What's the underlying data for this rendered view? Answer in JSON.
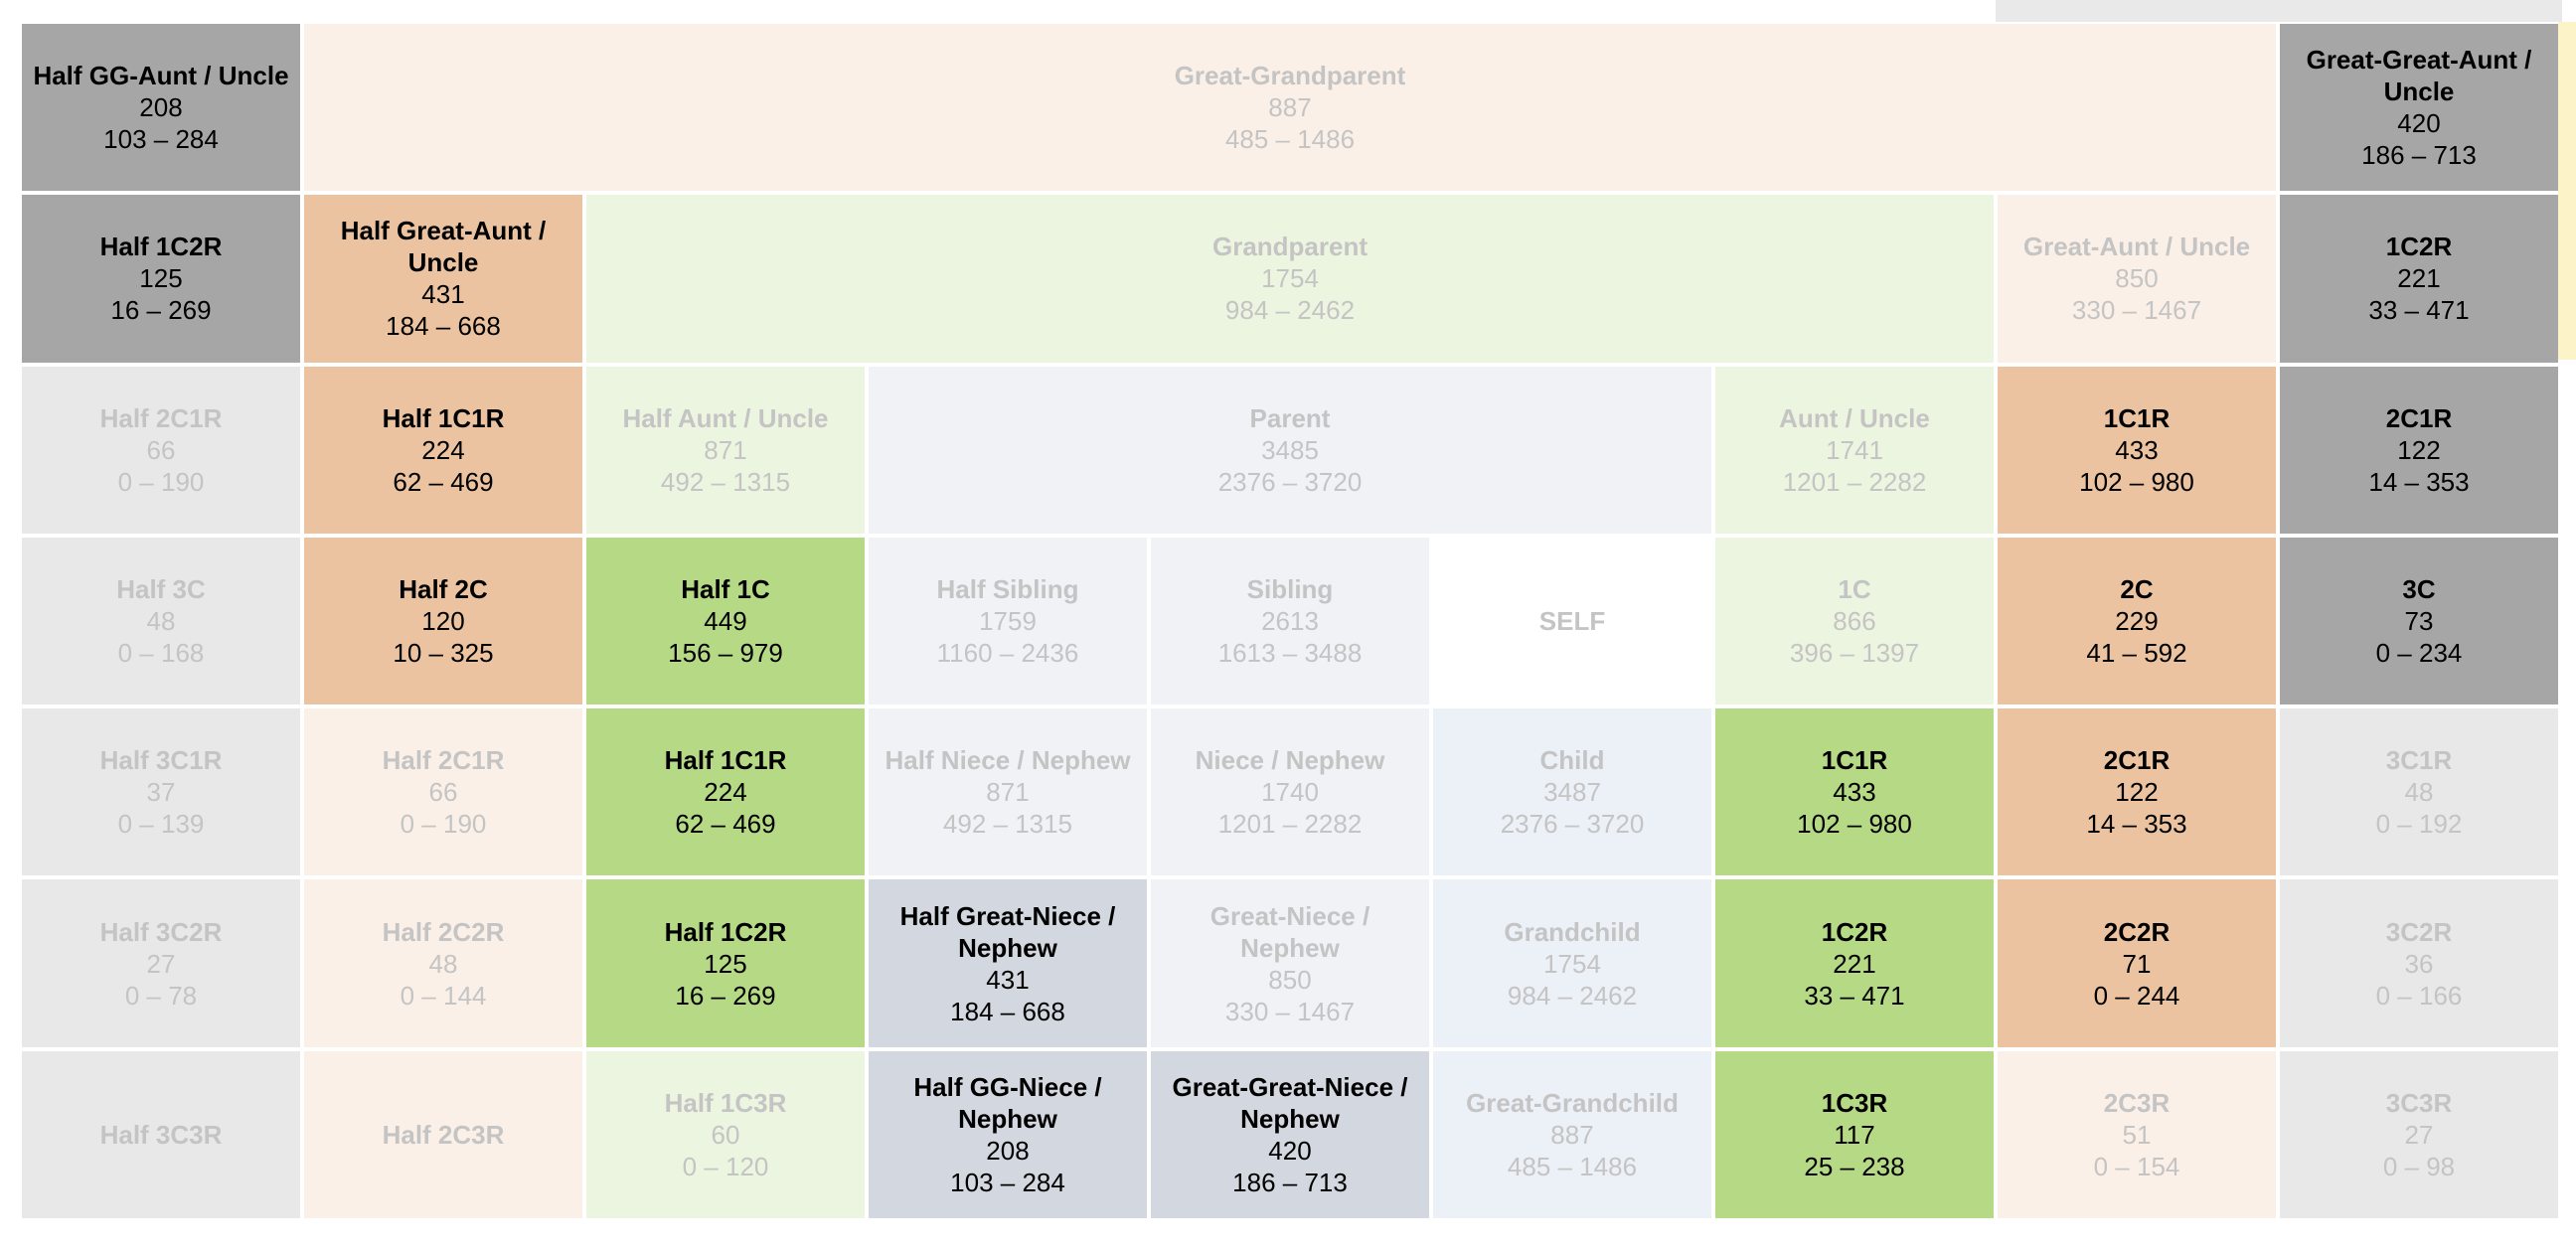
{
  "colors": {
    "dark_gray": "#a6a6a6",
    "light_gray": "#e8e8e8",
    "peach_dark": "#ecc3a1",
    "peach_light": "#fbf0e7",
    "green_dark": "#b5d985",
    "green_light": "#ecf5e0",
    "slate_dark": "#d2d7e0",
    "slate_light": "#f1f2f6",
    "blue_light": "#ecf0f7",
    "white": "#ffffff",
    "text_active": "#000000",
    "text_faded": "#c4c4c4"
  },
  "cells": [
    {
      "title": "Half GG-Aunt / Uncle",
      "count": "208",
      "range": "103 – 284",
      "active": true,
      "bg": "dark_gray"
    },
    {
      "title": "Great-Grandparent",
      "count": "887",
      "range": "485 – 1486",
      "active": false,
      "bg": "peach_light"
    },
    {
      "title": "Great-Great-Aunt / Uncle",
      "count": "420",
      "range": "186 – 713",
      "active": true,
      "bg": "dark_gray"
    },
    {
      "title": "Half 1C2R",
      "count": "125",
      "range": "16 – 269",
      "active": true,
      "bg": "dark_gray"
    },
    {
      "title": "Half Great-Aunt / Uncle",
      "count": "431",
      "range": "184 – 668",
      "active": true,
      "bg": "peach_dark"
    },
    {
      "title": "Grandparent",
      "count": "1754",
      "range": "984 – 2462",
      "active": false,
      "bg": "green_light"
    },
    {
      "title": "Great-Aunt / Uncle",
      "count": "850",
      "range": "330 – 1467",
      "active": false,
      "bg": "peach_light"
    },
    {
      "title": "1C2R",
      "count": "221",
      "range": "33 – 471",
      "active": true,
      "bg": "dark_gray"
    },
    {
      "title": "Half 2C1R",
      "count": "66",
      "range": "0 – 190",
      "active": false,
      "bg": "light_gray"
    },
    {
      "title": "Half 1C1R",
      "count": "224",
      "range": "62 – 469",
      "active": true,
      "bg": "peach_dark"
    },
    {
      "title": "Half Aunt / Uncle",
      "count": "871",
      "range": "492 – 1315",
      "active": false,
      "bg": "green_light"
    },
    {
      "title": "Parent",
      "count": "3485",
      "range": "2376 – 3720",
      "active": false,
      "bg": "slate_light"
    },
    {
      "title": "Aunt / Uncle",
      "count": "1741",
      "range": "1201 – 2282",
      "active": false,
      "bg": "green_light"
    },
    {
      "title": "1C1R",
      "count": "433",
      "range": "102 – 980",
      "active": true,
      "bg": "peach_dark"
    },
    {
      "title": "2C1R",
      "count": "122",
      "range": "14 – 353",
      "active": true,
      "bg": "dark_gray"
    },
    {
      "title": "Half 3C",
      "count": "48",
      "range": "0 – 168",
      "active": false,
      "bg": "light_gray"
    },
    {
      "title": "Half 2C",
      "count": "120",
      "range": "10 – 325",
      "active": true,
      "bg": "peach_dark"
    },
    {
      "title": "Half 1C",
      "count": "449",
      "range": "156 – 979",
      "active": true,
      "bg": "green_dark"
    },
    {
      "title": "Half Sibling",
      "count": "1759",
      "range": "1160 – 2436",
      "active": false,
      "bg": "slate_light"
    },
    {
      "title": "Sibling",
      "count": "2613",
      "range": "1613 – 3488",
      "active": false,
      "bg": "slate_light"
    },
    {
      "title": "SELF",
      "count": "",
      "range": "",
      "active": false,
      "bg": "white"
    },
    {
      "title": "1C",
      "count": "866",
      "range": "396 – 1397",
      "active": false,
      "bg": "green_light"
    },
    {
      "title": "2C",
      "count": "229",
      "range": "41 – 592",
      "active": true,
      "bg": "peach_dark"
    },
    {
      "title": "3C",
      "count": "73",
      "range": "0 – 234",
      "active": true,
      "bg": "dark_gray"
    },
    {
      "title": "Half 3C1R",
      "count": "37",
      "range": "0 – 139",
      "active": false,
      "bg": "light_gray"
    },
    {
      "title": "Half 2C1R",
      "count": "66",
      "range": "0 – 190",
      "active": false,
      "bg": "peach_light"
    },
    {
      "title": "Half 1C1R",
      "count": "224",
      "range": "62 – 469",
      "active": true,
      "bg": "green_dark"
    },
    {
      "title": "Half Niece / Nephew",
      "count": "871",
      "range": "492 – 1315",
      "active": false,
      "bg": "slate_light"
    },
    {
      "title": "Niece / Nephew",
      "count": "1740",
      "range": "1201 – 2282",
      "active": false,
      "bg": "slate_light"
    },
    {
      "title": "Child",
      "count": "3487",
      "range": "2376 – 3720",
      "active": false,
      "bg": "blue_light"
    },
    {
      "title": "1C1R",
      "count": "433",
      "range": "102 – 980",
      "active": true,
      "bg": "green_dark"
    },
    {
      "title": "2C1R",
      "count": "122",
      "range": "14 – 353",
      "active": true,
      "bg": "peach_dark"
    },
    {
      "title": "3C1R",
      "count": "48",
      "range": "0 – 192",
      "active": false,
      "bg": "light_gray"
    },
    {
      "title": "Half 3C2R",
      "count": "27",
      "range": "0 – 78",
      "active": false,
      "bg": "light_gray"
    },
    {
      "title": "Half 2C2R",
      "count": "48",
      "range": "0 – 144",
      "active": false,
      "bg": "peach_light"
    },
    {
      "title": "Half 1C2R",
      "count": "125",
      "range": "16 – 269",
      "active": true,
      "bg": "green_dark"
    },
    {
      "title": "Half Great-Niece / Nephew",
      "count": "431",
      "range": "184 – 668",
      "active": true,
      "bg": "slate_dark"
    },
    {
      "title": "Great-Niece / Nephew",
      "count": "850",
      "range": "330 – 1467",
      "active": false,
      "bg": "slate_light"
    },
    {
      "title": "Grandchild",
      "count": "1754",
      "range": "984 – 2462",
      "active": false,
      "bg": "blue_light"
    },
    {
      "title": "1C2R",
      "count": "221",
      "range": "33 – 471",
      "active": true,
      "bg": "green_dark"
    },
    {
      "title": "2C2R",
      "count": "71",
      "range": "0 – 244",
      "active": true,
      "bg": "peach_dark"
    },
    {
      "title": "3C2R",
      "count": "36",
      "range": "0 – 166",
      "active": false,
      "bg": "light_gray"
    },
    {
      "title": "Half 3C3R",
      "count": "",
      "range": "",
      "active": false,
      "bg": "light_gray"
    },
    {
      "title": "Half 2C3R",
      "count": "",
      "range": "",
      "active": false,
      "bg": "peach_light"
    },
    {
      "title": "Half 1C3R",
      "count": "60",
      "range": "0 – 120",
      "active": false,
      "bg": "green_light"
    },
    {
      "title": "Half GG-Niece / Nephew",
      "count": "208",
      "range": "103 – 284",
      "active": true,
      "bg": "slate_dark"
    },
    {
      "title": "Great-Great-Niece / Nephew",
      "count": "420",
      "range": "186 – 713",
      "active": true,
      "bg": "slate_dark"
    },
    {
      "title": "Great-Grandchild",
      "count": "887",
      "range": "485 – 1486",
      "active": false,
      "bg": "blue_light"
    },
    {
      "title": "1C3R",
      "count": "117",
      "range": "25 – 238",
      "active": true,
      "bg": "green_dark"
    },
    {
      "title": "2C3R",
      "count": "51",
      "range": "0 – 154",
      "active": false,
      "bg": "peach_light"
    },
    {
      "title": "3C3R",
      "count": "27",
      "range": "0 – 98",
      "active": false,
      "bg": "light_gray"
    }
  ]
}
